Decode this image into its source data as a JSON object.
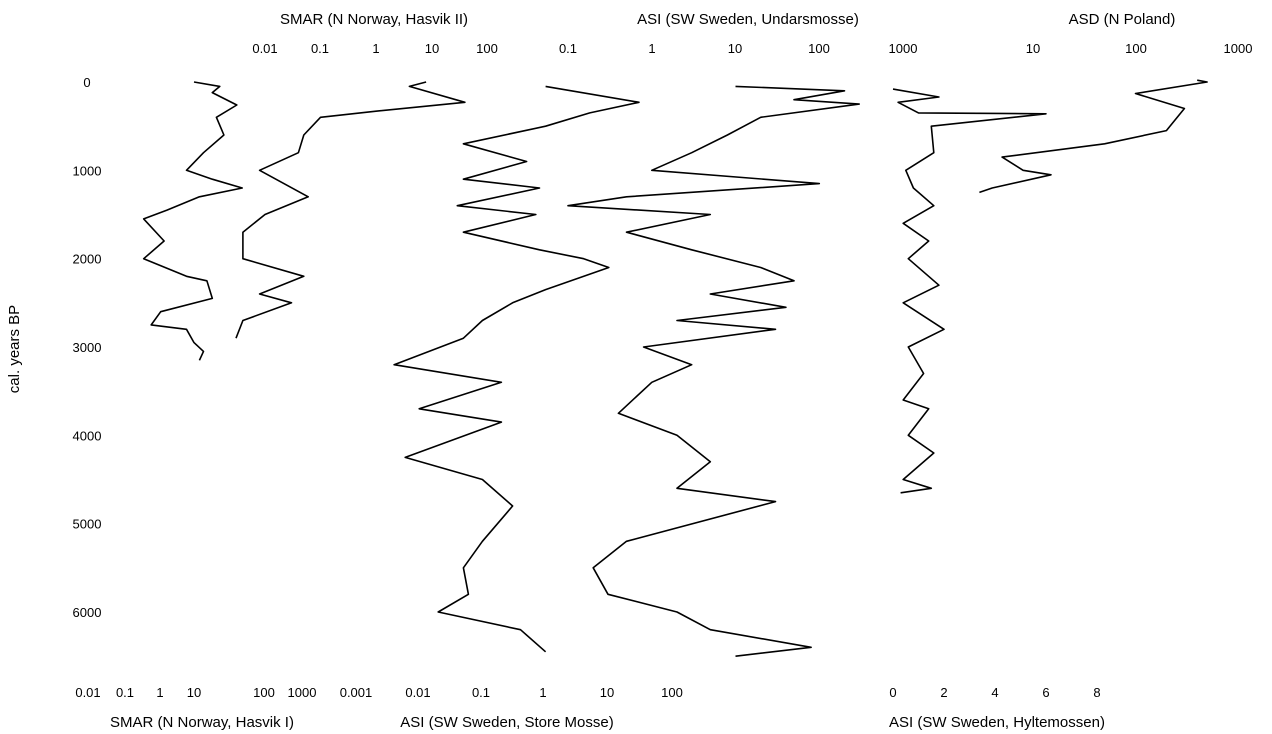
{
  "chart_data": [
    {
      "type": "line",
      "id": "hasvik1",
      "title": "SMAR (N Norway, Hasvik I)",
      "x_scale": "log",
      "x_ticks": [
        "0.01",
        "0.1",
        "1",
        "10",
        "100",
        "1000"
      ],
      "y_axis_label": "cal. years BP",
      "y_ticks": [
        "0",
        "1000",
        "2000",
        "3000",
        "4000",
        "5000",
        "6000"
      ],
      "ylim": [
        0,
        6700
      ],
      "points": [
        [
          3,
          0
        ],
        [
          12,
          50
        ],
        [
          8,
          120
        ],
        [
          30,
          260
        ],
        [
          10,
          400
        ],
        [
          15,
          600
        ],
        [
          5,
          800
        ],
        [
          2,
          1000
        ],
        [
          8,
          1100
        ],
        [
          40,
          1200
        ],
        [
          4,
          1300
        ],
        [
          0.7,
          1450
        ],
        [
          0.2,
          1550
        ],
        [
          0.6,
          1800
        ],
        [
          0.2,
          2000
        ],
        [
          2,
          2200
        ],
        [
          6,
          2250
        ],
        [
          8,
          2450
        ],
        [
          0.5,
          2600
        ],
        [
          0.3,
          2750
        ],
        [
          2,
          2800
        ],
        [
          3,
          2950
        ],
        [
          5,
          3050
        ],
        [
          4,
          3150
        ]
      ]
    },
    {
      "type": "line",
      "id": "hasvik2",
      "title": "SMAR (N Norway, Hasvik II)",
      "x_scale": "log",
      "x_ticks": [
        "0.01",
        "0.1",
        "1",
        "10",
        "100"
      ],
      "points": [
        [
          8,
          0
        ],
        [
          4,
          50
        ],
        [
          40,
          230
        ],
        [
          1,
          330
        ],
        [
          0.1,
          400
        ],
        [
          0.05,
          600
        ],
        [
          0.04,
          800
        ],
        [
          0.008,
          1000
        ],
        [
          0.06,
          1300
        ],
        [
          0.01,
          1500
        ],
        [
          0.004,
          1700
        ],
        [
          0.004,
          2000
        ],
        [
          0.05,
          2200
        ],
        [
          0.008,
          2400
        ],
        [
          0.03,
          2500
        ],
        [
          0.004,
          2700
        ],
        [
          0.003,
          2900
        ]
      ]
    },
    {
      "type": "line",
      "id": "store_mosse",
      "title": "ASI (SW Sweden, Store Mosse)",
      "x_scale": "log",
      "x_ticks": [
        "0.001",
        "0.01",
        "0.1",
        "1",
        "10",
        "100"
      ],
      "points": [
        [
          1,
          50
        ],
        [
          30,
          230
        ],
        [
          5,
          350
        ],
        [
          1,
          500
        ],
        [
          0.05,
          700
        ],
        [
          0.5,
          900
        ],
        [
          0.05,
          1100
        ],
        [
          0.8,
          1200
        ],
        [
          0.04,
          1400
        ],
        [
          0.7,
          1500
        ],
        [
          0.05,
          1700
        ],
        [
          0.8,
          1900
        ],
        [
          4,
          2000
        ],
        [
          10,
          2100
        ],
        [
          1,
          2350
        ],
        [
          0.3,
          2500
        ],
        [
          0.1,
          2700
        ],
        [
          0.05,
          2900
        ],
        [
          0.004,
          3200
        ],
        [
          0.2,
          3400
        ],
        [
          0.01,
          3700
        ],
        [
          0.2,
          3850
        ],
        [
          0.006,
          4250
        ],
        [
          0.1,
          4500
        ],
        [
          0.3,
          4800
        ],
        [
          0.1,
          5200
        ],
        [
          0.05,
          5500
        ],
        [
          0.06,
          5800
        ],
        [
          0.02,
          6000
        ],
        [
          0.4,
          6200
        ],
        [
          1,
          6450
        ]
      ]
    },
    {
      "type": "line",
      "id": "undarsmosse",
      "title": "ASI (SW Sweden, Undarsmosse)",
      "x_scale": "log",
      "x_ticks": [
        "0.1",
        "1",
        "10",
        "100",
        "1000"
      ],
      "points": [
        [
          10,
          50
        ],
        [
          200,
          100
        ],
        [
          50,
          200
        ],
        [
          300,
          250
        ],
        [
          20,
          400
        ],
        [
          8,
          600
        ],
        [
          3,
          800
        ],
        [
          1,
          1000
        ],
        [
          100,
          1150
        ],
        [
          0.5,
          1300
        ],
        [
          0.1,
          1400
        ],
        [
          5,
          1500
        ],
        [
          0.5,
          1700
        ],
        [
          3,
          1900
        ],
        [
          20,
          2100
        ],
        [
          50,
          2250
        ],
        [
          5,
          2400
        ],
        [
          40,
          2550
        ],
        [
          2,
          2700
        ],
        [
          30,
          2800
        ],
        [
          0.8,
          3000
        ],
        [
          3,
          3200
        ],
        [
          1,
          3400
        ],
        [
          0.4,
          3750
        ],
        [
          2,
          4000
        ],
        [
          5,
          4300
        ],
        [
          2,
          4600
        ],
        [
          30,
          4750
        ],
        [
          0.5,
          5200
        ],
        [
          0.2,
          5500
        ],
        [
          0.3,
          5800
        ],
        [
          2,
          6000
        ],
        [
          5,
          6200
        ],
        [
          80,
          6400
        ],
        [
          10,
          6500
        ]
      ]
    },
    {
      "type": "line",
      "id": "hyltemossen",
      "title": "ASI (SW Sweden, Hyltemossen)",
      "x_scale": "linear",
      "x_ticks": [
        "0",
        "2",
        "4",
        "6",
        "8"
      ],
      "xlim": [
        0,
        8
      ],
      "points": [
        [
          0,
          80
        ],
        [
          1.8,
          170
        ],
        [
          0.2,
          230
        ],
        [
          1,
          350
        ],
        [
          6,
          360
        ],
        [
          1.5,
          500
        ],
        [
          1.6,
          800
        ],
        [
          0.5,
          1000
        ],
        [
          0.8,
          1200
        ],
        [
          1.6,
          1400
        ],
        [
          0.4,
          1600
        ],
        [
          1.4,
          1800
        ],
        [
          0.6,
          2000
        ],
        [
          1.8,
          2300
        ],
        [
          0.4,
          2500
        ],
        [
          2,
          2800
        ],
        [
          0.6,
          3000
        ],
        [
          1.2,
          3300
        ],
        [
          0.4,
          3600
        ],
        [
          1.4,
          3700
        ],
        [
          0.6,
          4000
        ],
        [
          1.6,
          4200
        ],
        [
          0.4,
          4500
        ],
        [
          1.5,
          4600
        ],
        [
          0.3,
          4650
        ]
      ]
    },
    {
      "type": "line",
      "id": "poland",
      "title": "ASD (N Poland)",
      "x_scale": "log",
      "x_ticks": [
        "10",
        "100",
        "1000"
      ],
      "points": [
        [
          400,
          -20
        ],
        [
          500,
          0
        ],
        [
          100,
          130
        ],
        [
          300,
          300
        ],
        [
          200,
          550
        ],
        [
          50,
          700
        ],
        [
          5,
          850
        ],
        [
          8,
          1000
        ],
        [
          15,
          1050
        ],
        [
          4,
          1200
        ],
        [
          3,
          1250
        ]
      ]
    }
  ]
}
